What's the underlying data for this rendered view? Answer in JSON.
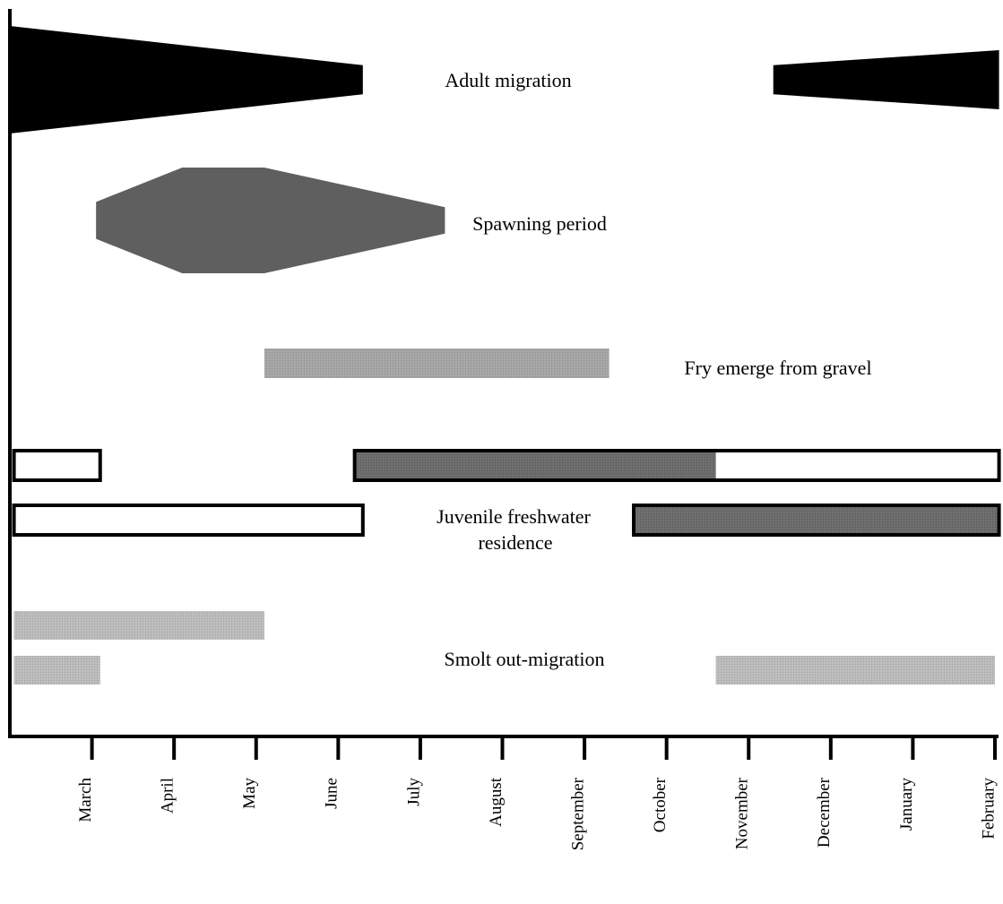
{
  "chart_data": {
    "type": "timeline",
    "title": "",
    "xlabel": "",
    "ylabel": "",
    "months": [
      "March",
      "April",
      "May",
      "June",
      "July",
      "August",
      "September",
      "October",
      "November",
      "December",
      "January",
      "February"
    ],
    "colors": {
      "adult": "#000000",
      "spawning": "#5f5f5f",
      "fry": "#9a9a9a",
      "smolt": "#b3b3b3",
      "residence_fill": "#686868",
      "outline": "#000000"
    },
    "activities": [
      {
        "label": "Adult migration",
        "kind": "taper",
        "shapes": [
          {
            "points": [
              [
                0.0,
                1.0
              ],
              [
                4.3,
                0.27
              ]
            ]
          },
          {
            "points": [
              [
                9.3,
                0.27
              ],
              [
                12.05,
                0.55
              ]
            ]
          }
        ]
      },
      {
        "label": "Spawning period",
        "kind": "hexagon",
        "shapes": [
          {
            "points": [
              [
                1.05,
                0.35
              ],
              [
                2.1,
                1.0
              ],
              [
                3.1,
                1.0
              ],
              [
                5.3,
                0.25
              ]
            ]
          }
        ]
      },
      {
        "label": "Fry emerge from gravel",
        "kind": "bar",
        "shapes": [
          {
            "start": 3.1,
            "end": 7.3,
            "fill": "fry"
          }
        ]
      },
      {
        "label": "Juvenile freshwater residence",
        "label_lines": [
          "Juvenile freshwater",
          "residence"
        ],
        "kind": "bars",
        "shapes": [
          {
            "row": 1,
            "start": 0.0,
            "end": 1.1,
            "outlined": true
          },
          {
            "row": 1,
            "start": 4.2,
            "end": 12.05,
            "outlined": true,
            "filled_start": 4.2,
            "filled_end": 8.6
          },
          {
            "row": 2,
            "start": 0.0,
            "end": 4.3,
            "outlined": true
          },
          {
            "row": 2,
            "start": 7.6,
            "end": 12.05,
            "outlined": true,
            "filled_start": 7.6,
            "filled_end": 12.05
          }
        ]
      },
      {
        "label": "Smolt out-migration",
        "kind": "bars",
        "shapes": [
          {
            "row": 1,
            "start": 0.0,
            "end": 3.1,
            "fill": "smolt"
          },
          {
            "row": 2,
            "start": 0.0,
            "end": 1.1,
            "fill": "smolt"
          },
          {
            "row": 2,
            "start": 8.6,
            "end": 12.0,
            "fill": "smolt"
          }
        ]
      }
    ]
  }
}
